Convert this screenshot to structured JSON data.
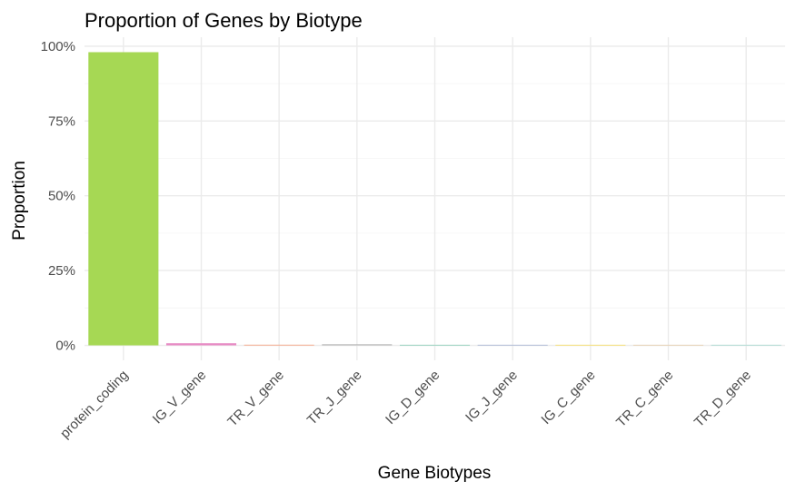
{
  "chart_data": {
    "type": "bar",
    "title": "Proportion of Genes by Biotype",
    "xlabel": "Gene Biotypes",
    "ylabel": "Proportion",
    "categories": [
      "protein_coding",
      "IG_V_gene",
      "TR_V_gene",
      "TR_J_gene",
      "IG_D_gene",
      "IG_J_gene",
      "IG_C_gene",
      "TR_C_gene",
      "TR_D_gene"
    ],
    "values": [
      0.98,
      0.007,
      0.002,
      0.0035,
      0.001,
      0.001,
      0.0005,
      0.0003,
      0.0002
    ],
    "colors": [
      "#a6d854",
      "#e78ac3",
      "#fc8d62",
      "#b3b3b3",
      "#66c2a5",
      "#8da0cb",
      "#ffd92f",
      "#e5c494",
      "#8dd3c7"
    ],
    "ylim": [
      -0.05,
      1.03
    ],
    "yticks": [
      0,
      0.25,
      0.5,
      0.75,
      1.0
    ],
    "ytick_labels": [
      "0%",
      "25%",
      "50%",
      "75%",
      "100%"
    ],
    "grid": true,
    "legend": "none"
  }
}
